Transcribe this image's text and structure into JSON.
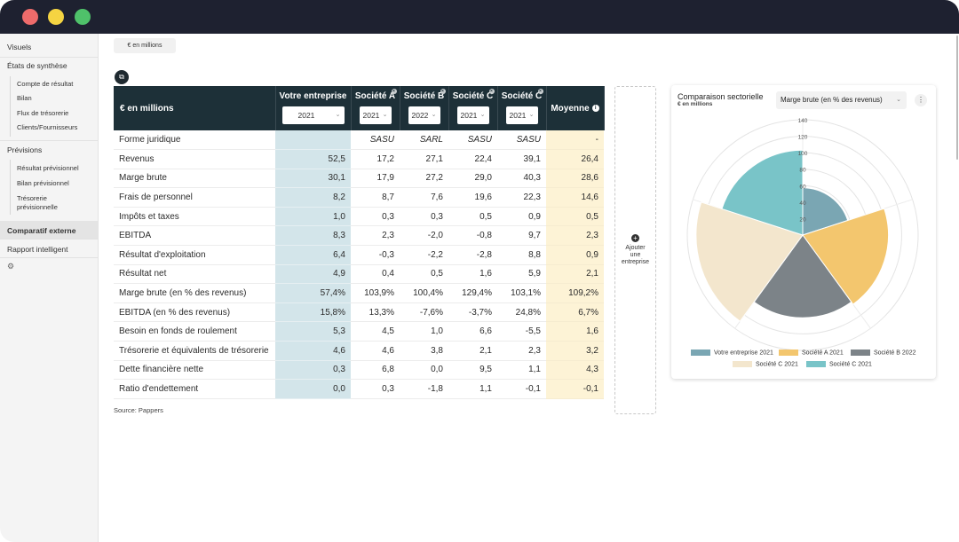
{
  "window_dots": [
    "#ee6b6b",
    "#f5d442",
    "#4fc16a"
  ],
  "sidebar": {
    "visuels": "Visuels",
    "etats": "États de synthèse",
    "etats_items": [
      "Compte de résultat",
      "Bilan",
      "Flux de trésorerie",
      "Clients/Fournisseurs"
    ],
    "previsions": "Prévisions",
    "previsions_items": [
      "Résultat prévisionnel",
      "Bilan prévisionnel",
      "Trésorerie prévisionnelle"
    ],
    "comparatif": "Comparatif externe",
    "rapport": "Rapport intelligent",
    "settings_icon": "gear-icon"
  },
  "unit_button": "€ en millions",
  "table": {
    "header_label": "€ en millions",
    "columns": [
      {
        "name": "Votre entreprise",
        "year": "2021"
      },
      {
        "name": "Société A",
        "year": "2021"
      },
      {
        "name": "Société B",
        "year": "2022"
      },
      {
        "name": "Société C",
        "year": "2021"
      },
      {
        "name": "Société C",
        "year": "2021"
      }
    ],
    "avg_label": "Moyenne",
    "rows": [
      {
        "label": "Forme juridique",
        "values": [
          "",
          "SASU",
          "SARL",
          "SASU",
          "SASU"
        ],
        "avg": "-"
      },
      {
        "label": "Revenus",
        "values": [
          "52,5",
          "17,2",
          "27,1",
          "22,4",
          "39,1"
        ],
        "avg": "26,4"
      },
      {
        "label": "Marge brute",
        "values": [
          "30,1",
          "17,9",
          "27,2",
          "29,0",
          "40,3"
        ],
        "avg": "28,6"
      },
      {
        "label": "Frais de personnel",
        "values": [
          "8,2",
          "8,7",
          "7,6",
          "19,6",
          "22,3"
        ],
        "avg": "14,6"
      },
      {
        "label": "Impôts et taxes",
        "values": [
          "1,0",
          "0,3",
          "0,3",
          "0,5",
          "0,9"
        ],
        "avg": "0,5"
      },
      {
        "label": "EBITDA",
        "values": [
          "8,3",
          "2,3",
          "-2,0",
          "-0,8",
          "9,7"
        ],
        "avg": "2,3"
      },
      {
        "label": "Résultat d'exploitation",
        "values": [
          "6,4",
          "-0,3",
          "-2,2",
          "-2,8",
          "8,8"
        ],
        "avg": "0,9"
      },
      {
        "label": "Résultat net",
        "values": [
          "4,9",
          "0,4",
          "0,5",
          "1,6",
          "5,9"
        ],
        "avg": "2,1"
      },
      {
        "label": "Marge brute (en % des revenus)",
        "values": [
          "57,4%",
          "103,9%",
          "100,4%",
          "129,4%",
          "103,1%"
        ],
        "avg": "109,2%"
      },
      {
        "label": "EBITDA (en % des revenus)",
        "values": [
          "15,8%",
          "13,3%",
          "-7,6%",
          "-3,7%",
          "24,8%"
        ],
        "avg": "6,7%"
      },
      {
        "label": "Besoin en fonds de roulement",
        "values": [
          "5,3",
          "4,5",
          "1,0",
          "6,6",
          "-5,5"
        ],
        "avg": "1,6"
      },
      {
        "label": "Trésorerie et équivalents de trésorerie",
        "values": [
          "4,6",
          "4,6",
          "3,8",
          "2,1",
          "2,3"
        ],
        "avg": "3,2"
      },
      {
        "label": "Dette financière nette",
        "values": [
          "0,3",
          "6,8",
          "0,0",
          "9,5",
          "1,1"
        ],
        "avg": "4,3"
      },
      {
        "label": "Ratio d'endettement",
        "values": [
          "0,0",
          "0,3",
          "-1,8",
          "1,1",
          "-0,1"
        ],
        "avg": "-0,1"
      }
    ]
  },
  "source": "Source: Pappers",
  "add_company": {
    "line1": "Ajouter",
    "line2": "une",
    "line3": "entreprise"
  },
  "chart_card": {
    "title": "Comparaison sectorielle",
    "subtitle": "€ en millions",
    "select": "Marge brute (en % des revenus)"
  },
  "chart_data": {
    "type": "polar-area",
    "rmax": 140,
    "ticks": [
      20,
      40,
      60,
      80,
      100,
      120,
      140
    ],
    "series": [
      {
        "name": "Votre entreprise 2021",
        "value": 57.4,
        "color": "#7aa6b3"
      },
      {
        "name": "Société A 2021",
        "value": 103.9,
        "color": "#f3c66e"
      },
      {
        "name": "Société B 2022",
        "value": 100.4,
        "color": "#7c8388"
      },
      {
        "name": "Société C 2021",
        "value": 129.4,
        "color": "#f3e6cd"
      },
      {
        "name": "Société C 2021",
        "value": 103.1,
        "color": "#79c4c8"
      }
    ]
  }
}
